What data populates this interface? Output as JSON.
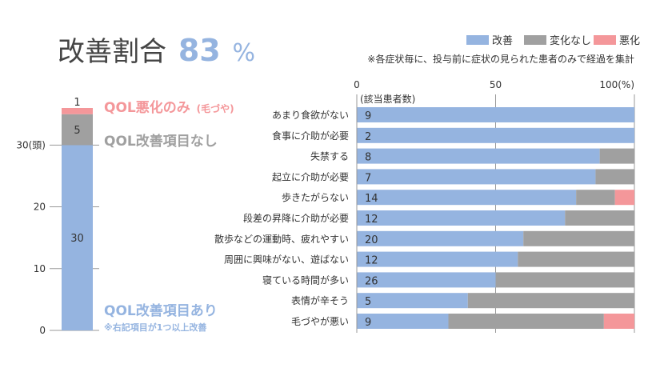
{
  "colors": {
    "improved": "#95b4e0",
    "no_change": "#a0a0a0",
    "worsened": "#f4979a",
    "text": "#333333",
    "grid": "#999999"
  },
  "title": {
    "text": "改善割合",
    "value": "83",
    "unit": "%"
  },
  "legend": [
    {
      "key": "improved",
      "label": "改善"
    },
    {
      "key": "no_change",
      "label": "変化なし"
    },
    {
      "key": "worsened",
      "label": "悪化"
    }
  ],
  "note": "※各症状毎に、投与前に症状の見られた患者のみで経過を集計",
  "labels": {
    "worsened_main": "QOL悪化のみ",
    "worsened_sub": "(毛づや)",
    "no_change": "QOL改善項目なし",
    "improved": "QOL改善項目あり",
    "improved_note": "※右記項目が1つ以上改善"
  },
  "chart_data": [
    {
      "type": "bar",
      "stacked": true,
      "orientation": "vertical",
      "y_unit_label": "30(頭)",
      "yticks": [
        0,
        10,
        20,
        30
      ],
      "ylim": [
        0,
        36
      ],
      "segments": [
        {
          "key": "improved",
          "value": 30
        },
        {
          "key": "no_change",
          "value": 5
        },
        {
          "key": "worsened",
          "value": 1
        }
      ]
    },
    {
      "type": "bar",
      "stacked": true,
      "orientation": "horizontal",
      "xticks": [
        {
          "value": 0,
          "label": "0"
        },
        {
          "value": 50,
          "label": "50"
        },
        {
          "value": 100,
          "label": "100(%)"
        }
      ],
      "xlim": [
        0,
        100
      ],
      "count_header": "(該当患者数)",
      "rows": [
        {
          "label": "あまり食欲がない",
          "n": "9",
          "improved": 100,
          "no_change": 0,
          "worsened": 0
        },
        {
          "label": "食事に介助が必要",
          "n": "2",
          "improved": 100,
          "no_change": 0,
          "worsened": 0
        },
        {
          "label": "失禁する",
          "n": "8",
          "improved": 87.5,
          "no_change": 12.5,
          "worsened": 0
        },
        {
          "label": "起立に介助が必要",
          "n": "7",
          "improved": 86,
          "no_change": 14,
          "worsened": 0
        },
        {
          "label": "歩きたがらない",
          "n": "14",
          "improved": 79,
          "no_change": 14,
          "worsened": 7
        },
        {
          "label": "段差の昇降に介助が必要",
          "n": "12",
          "improved": 75,
          "no_change": 25,
          "worsened": 0
        },
        {
          "label": "散歩などの運動時、疲れやすい",
          "n": "20",
          "improved": 60,
          "no_change": 40,
          "worsened": 0
        },
        {
          "label": "周囲に興味がない、遊ばない",
          "n": "12",
          "improved": 58,
          "no_change": 42,
          "worsened": 0
        },
        {
          "label": "寝ている時間が多い",
          "n": "26",
          "improved": 50,
          "no_change": 50,
          "worsened": 0
        },
        {
          "label": "表情が辛そう",
          "n": "5",
          "improved": 40,
          "no_change": 60,
          "worsened": 0
        },
        {
          "label": "毛づやが悪い",
          "n": "9",
          "improved": 33,
          "no_change": 56,
          "worsened": 11
        }
      ]
    }
  ]
}
